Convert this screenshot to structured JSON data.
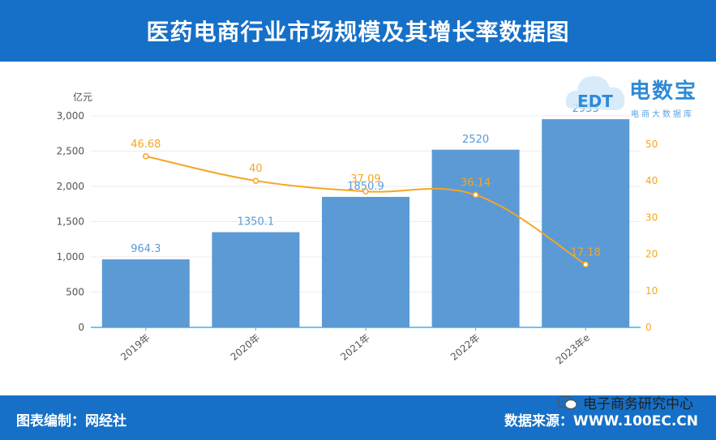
{
  "header": {
    "title": "医药电商行业市场规模及其增长率数据图"
  },
  "footer": {
    "left": "图表编制：网经社",
    "right": "数据来源：WWW.100EC.CN",
    "wechat": "电子商务研究中心"
  },
  "watermark": {
    "name": "电数宝",
    "sub": "电商大数据库",
    "logo_text": "EDT"
  },
  "colors": {
    "bar": "#5b9ad5",
    "line": "#f5a623",
    "header": "#1670c7",
    "axis_baseline": "#6ec6f0"
  },
  "chart_data": {
    "type": "bar",
    "categories": [
      "2019年",
      "2020年",
      "2021年",
      "2022年",
      "2023年e"
    ],
    "series": [
      {
        "kind": "bar",
        "axis": "left",
        "values": [
          964.3,
          1350.1,
          1850.9,
          2520,
          2953
        ],
        "labels": [
          "964.3",
          "1350.1",
          "1850.9",
          "2520",
          "2953"
        ]
      },
      {
        "kind": "line",
        "axis": "right",
        "values": [
          46.68,
          40,
          37.09,
          36.14,
          17.18
        ],
        "labels": [
          "46.68",
          "40",
          "37.09",
          "36.14",
          "17.18"
        ]
      }
    ],
    "ylabel": "亿元",
    "ylim": [
      0,
      3000
    ],
    "yticks": [
      "0",
      "500",
      "1,000",
      "1,500",
      "2,000",
      "2,500",
      "3,000"
    ],
    "y2lim": [
      0,
      57.7
    ],
    "y2ticks": [
      "0",
      "10",
      "20",
      "30",
      "40",
      "50"
    ],
    "grid": true
  }
}
